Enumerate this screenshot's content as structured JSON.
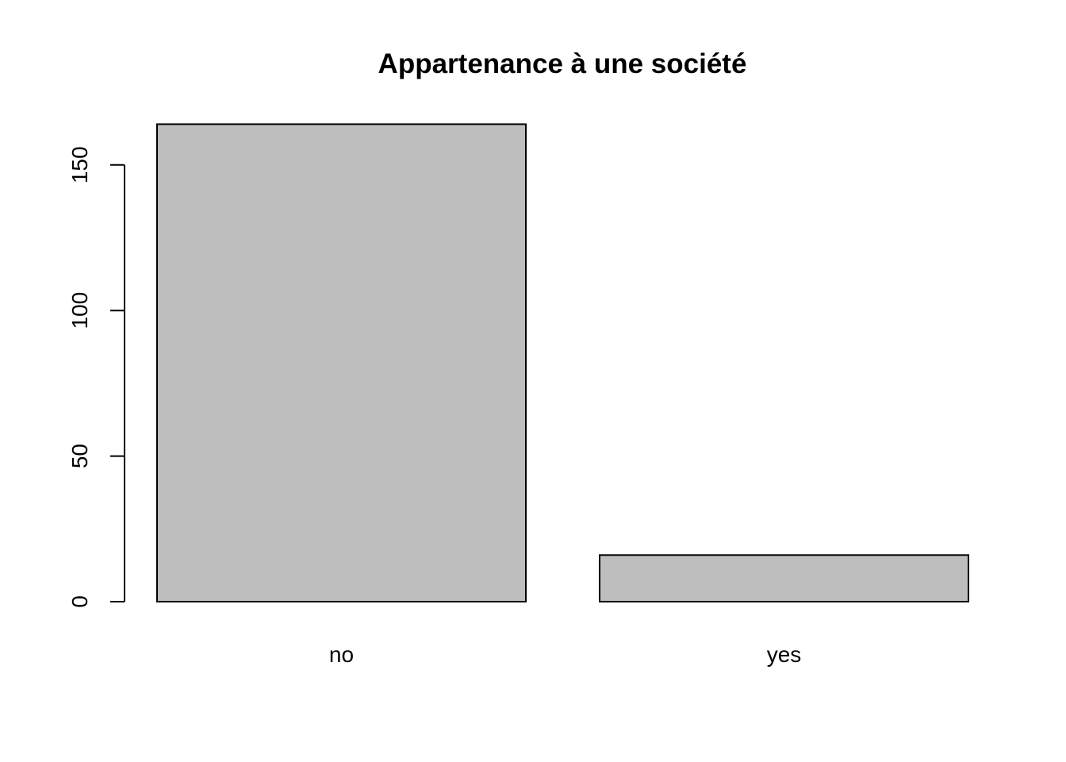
{
  "chart_data": {
    "type": "bar",
    "title": "Appartenance à une société",
    "xlabel": "",
    "ylabel": "",
    "categories": [
      "no",
      "yes"
    ],
    "values": [
      164,
      16
    ],
    "yticks": [
      0,
      50,
      100,
      150
    ],
    "ylim": [
      0,
      164
    ],
    "grid": false,
    "bar_color": "#bebebe",
    "edge_color": "#000000"
  }
}
